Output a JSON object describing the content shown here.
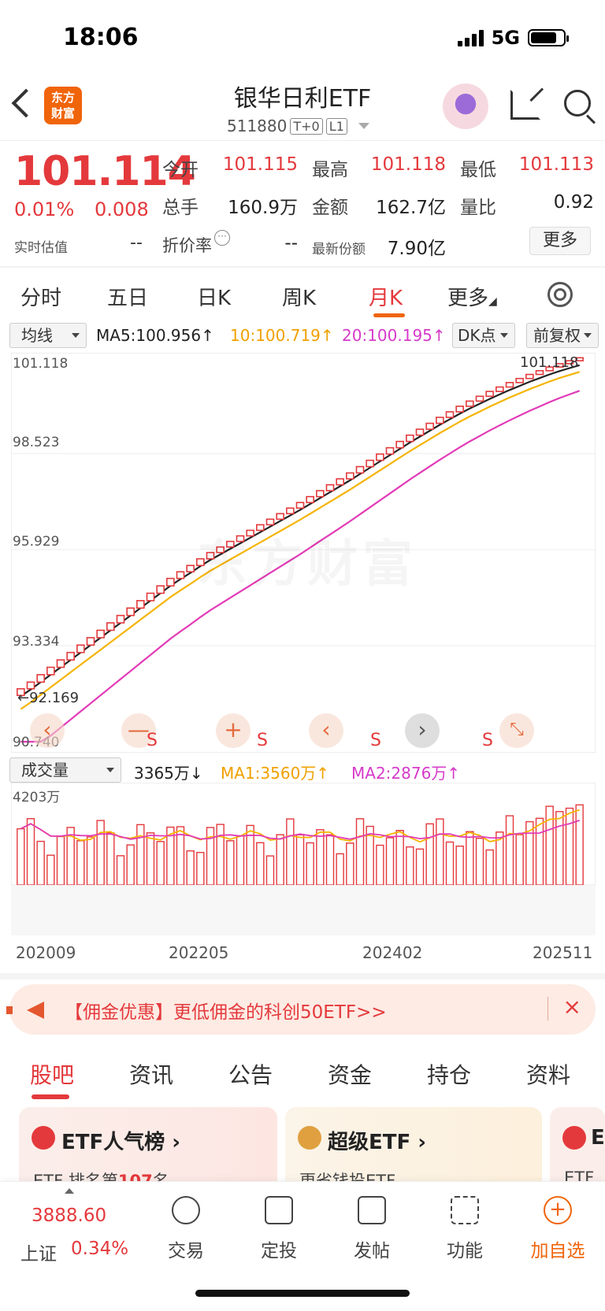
{
  "status_bar": {
    "time": "18:06",
    "network": "5G"
  },
  "header": {
    "logo_line1": "东方",
    "logo_line2": "财富",
    "title": "银华日利ETF",
    "code": "511880",
    "tag_t0": "T+0",
    "tag_l1": "L1"
  },
  "quote": {
    "price": "101.114",
    "change_pct": "0.01%",
    "change_val": "0.008",
    "est_label": "实时估值",
    "est_value": "--",
    "open_label": "今开",
    "open": "101.115",
    "high_label": "最高",
    "high": "101.118",
    "low_label": "最低",
    "low": "101.113",
    "volume_label": "总手",
    "volume": "160.9万",
    "amount_label": "金额",
    "amount": "162.7亿",
    "ratio_label": "量比",
    "ratio": "0.92",
    "discount_label": "折价率",
    "discount_value": "--",
    "shares_label": "最新份额",
    "shares": "7.90亿",
    "more": "更多"
  },
  "period_tabs": [
    "分时",
    "五日",
    "日K",
    "周K",
    "月K",
    "更多"
  ],
  "active_period": "月K",
  "ma_row": {
    "selector": "均线",
    "ma5": "MA5:100.956↑",
    "ma10": "10:100.719↑",
    "ma20": "20:100.195↑",
    "dk": "DK点",
    "adjust": "前复权"
  },
  "kline": {
    "y_labels": [
      "101.118",
      "98.523",
      "95.929",
      "93.334",
      "90.740"
    ],
    "high_marker": "101.118",
    "low_marker": "92.169",
    "watermark": "东方财富",
    "s_mark": "S",
    "zoom_out": "—",
    "zoom_in": "+",
    "prev": "‹",
    "next": "›",
    "expand": "⤡"
  },
  "vol_row": {
    "selector": "成交量",
    "vol": "3365万↓",
    "ma1": "MA1:3560万↑",
    "ma2": "MA2:2876万↑",
    "y_top": "4203万"
  },
  "x_labels": [
    "202009",
    "202205",
    "202402",
    "202511"
  ],
  "chart_data": {
    "type": "candlestick",
    "period": "monthly",
    "y_range": [
      90.74,
      101.118
    ],
    "closes_approx": [
      92.17,
      92.35,
      92.55,
      92.75,
      92.95,
      93.15,
      93.35,
      93.55,
      93.75,
      93.95,
      94.15,
      94.35,
      94.55,
      94.75,
      94.95,
      95.15,
      95.33,
      95.5,
      95.68,
      95.85,
      96.0,
      96.15,
      96.3,
      96.45,
      96.6,
      96.75,
      96.9,
      97.05,
      97.2,
      97.36,
      97.52,
      97.68,
      97.84,
      98.0,
      98.17,
      98.34,
      98.51,
      98.68,
      98.85,
      99.02,
      99.18,
      99.34,
      99.5,
      99.65,
      99.8,
      99.94,
      100.07,
      100.2,
      100.32,
      100.44,
      100.55,
      100.66,
      100.76,
      100.86,
      100.95,
      101.03,
      101.11
    ],
    "ma_series": [
      {
        "name": "MA5",
        "last": 100.956
      },
      {
        "name": "MA10",
        "last": 100.719
      },
      {
        "name": "MA20",
        "last": 100.195
      }
    ],
    "volume_max": 4203
  },
  "promo": {
    "text": "【佣金优惠】更低佣金的科创50ETF>>",
    "close": "×"
  },
  "content_tabs": [
    "股吧",
    "资讯",
    "公告",
    "资金",
    "持仓",
    "资料"
  ],
  "cards": [
    {
      "title": "ETF人气榜 ›",
      "sub_prefix": "ETF 排名第",
      "rank": "107",
      "sub_suffix": "名"
    },
    {
      "title": "超级ETF ›",
      "sub": "更省钱投ETF"
    },
    {
      "title": "E",
      "sub": "ETF行"
    }
  ],
  "bottom_nav": {
    "index_value": "3888.60",
    "index_name": "上证",
    "index_pct": "0.34%",
    "items": [
      "交易",
      "定投",
      "发帖",
      "功能",
      "加自选"
    ]
  },
  "colors": {
    "up": "#e4393c",
    "ma5": "#222222",
    "ma10": "#f5b400",
    "ma20": "#e23ab7",
    "accent": "#f0640a"
  }
}
